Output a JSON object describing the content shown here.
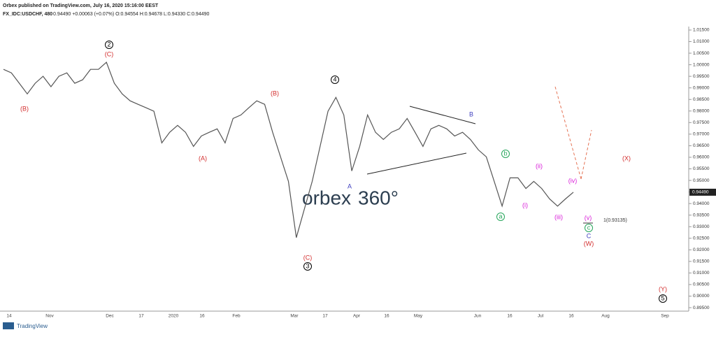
{
  "header": {
    "publisher": "Orbex published on TradingView.com, July 16, 2020 15:16:00 EEST",
    "symbol": "FX_IDC:USDCHF, 480",
    "quote": "0.94490 +0.00063 (+0.07%) O:0.94554 H:0.94678 L:0.94330 C:0.94490"
  },
  "watermark": {
    "brand": "orbex",
    "suffix": "360°"
  },
  "footer": "TradingView",
  "chart_data": {
    "type": "line",
    "color": "#555555",
    "values": [
      0.998,
      0.9965,
      0.992,
      0.9874,
      0.992,
      0.995,
      0.9905,
      0.995,
      0.9965,
      0.992,
      0.9935,
      0.998,
      0.998,
      1.0011,
      0.992,
      0.9874,
      0.9844,
      0.9829,
      0.9814,
      0.9799,
      0.9662,
      0.9708,
      0.9738,
      0.9708,
      0.9647,
      0.9692,
      0.9708,
      0.9723,
      0.9662,
      0.9768,
      0.9783,
      0.9814,
      0.9844,
      0.9829,
      0.9708,
      0.9602,
      0.9496,
      0.9253,
      0.9374,
      0.9496,
      0.9647,
      0.9799,
      0.9859,
      0.9783,
      0.9541,
      0.9647,
      0.9783,
      0.9708,
      0.9677,
      0.9708,
      0.9723,
      0.9768,
      0.9708,
      0.9647,
      0.9723,
      0.9738,
      0.9723,
      0.9692,
      0.9708,
      0.9677,
      0.9632,
      0.9602,
      0.9496,
      0.9389,
      0.9511,
      0.9511,
      0.9465,
      0.9496,
      0.9465,
      0.942,
      0.9389,
      0.942,
      0.9449
    ],
    "ylim": [
      0.8935,
      1.0165
    ],
    "yticks": [
      {
        "value": 1.015,
        "label": "1.01500"
      },
      {
        "value": 1.01,
        "label": "1.01000"
      },
      {
        "value": 1.005,
        "label": "1.00500"
      },
      {
        "value": 1.0,
        "label": "1.00000"
      },
      {
        "value": 0.995,
        "label": "0.99500"
      },
      {
        "value": 0.99,
        "label": "0.99000"
      },
      {
        "value": 0.985,
        "label": "0.98500"
      },
      {
        "value": 0.98,
        "label": "0.98000"
      },
      {
        "value": 0.975,
        "label": "0.97500"
      },
      {
        "value": 0.97,
        "label": "0.97000"
      },
      {
        "value": 0.965,
        "label": "0.96500"
      },
      {
        "value": 0.96,
        "label": "0.96000"
      },
      {
        "value": 0.955,
        "label": "0.95500"
      },
      {
        "value": 0.95,
        "label": "0.95000"
      },
      {
        "value": 0.945,
        "label": "0.94500"
      },
      {
        "value": 0.94,
        "label": "0.94000"
      },
      {
        "value": 0.935,
        "label": "0.93500"
      },
      {
        "value": 0.93,
        "label": "0.93000"
      },
      {
        "value": 0.925,
        "label": "0.92500"
      },
      {
        "value": 0.92,
        "label": "0.92000"
      },
      {
        "value": 0.915,
        "label": "0.91500"
      },
      {
        "value": 0.91,
        "label": "0.91000"
      },
      {
        "value": 0.905,
        "label": "0.90500"
      },
      {
        "value": 0.9,
        "label": "0.90000"
      },
      {
        "value": 0.895,
        "label": "0.89500"
      }
    ],
    "last_price": {
      "value": 0.9449,
      "label": "0.94490"
    },
    "x_axis_labels": [
      "14",
      "Nov",
      "Dec",
      "17",
      "2020",
      "16",
      "Feb",
      "Mar",
      "17",
      "Apr",
      "16",
      "May",
      "Jun",
      "16",
      "Jul",
      "16",
      "Aug",
      "Sep"
    ],
    "annotations": [
      {
        "text": "(B)",
        "color": "#d32f2f"
      },
      {
        "text": "(C)",
        "color": "#d32f2f"
      },
      {
        "text": "2",
        "color": "#000000"
      },
      {
        "text": "(A)",
        "color": "#d32f2f"
      },
      {
        "text": "(B)",
        "color": "#d32f2f"
      },
      {
        "text": "4",
        "color": "#000000"
      },
      {
        "text": "A",
        "color": "#3f3fbf"
      },
      {
        "text": "B",
        "color": "#3f3fbf"
      },
      {
        "text": "(C)",
        "color": "#d32f2f"
      },
      {
        "text": "3",
        "color": "#000000"
      },
      {
        "text": "b",
        "color": "#26a65b"
      },
      {
        "text": "a",
        "color": "#26a65b"
      },
      {
        "text": "(ii)",
        "color": "#d81bd8"
      },
      {
        "text": "(i)",
        "color": "#d81bd8"
      },
      {
        "text": "(iii)",
        "color": "#d81bd8"
      },
      {
        "text": "(iv)",
        "color": "#d81bd8"
      },
      {
        "text": "(v)",
        "color": "#d81bd8"
      },
      {
        "text": "c",
        "color": "#26a65b"
      },
      {
        "text": "C",
        "color": "#3f3fbf"
      },
      {
        "text": "(W)",
        "color": "#d32f2f"
      },
      {
        "text": "(X)",
        "color": "#d32f2f"
      },
      {
        "text": "(Y)",
        "color": "#d32f2f"
      },
      {
        "text": "5",
        "color": "#000000"
      },
      {
        "text": "1(0.93135)",
        "color": "#333333"
      }
    ]
  }
}
